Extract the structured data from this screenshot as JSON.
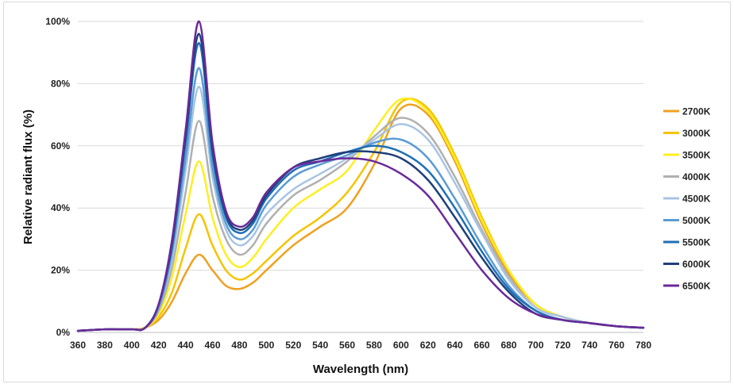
{
  "chart_data": {
    "type": "line",
    "title": "",
    "xlabel": "Wavelength (nm)",
    "ylabel": "Relative radiant flux (%)",
    "xlim": [
      360,
      780
    ],
    "ylim": [
      0,
      100
    ],
    "x_ticks": [
      360,
      380,
      400,
      420,
      440,
      460,
      480,
      500,
      520,
      540,
      560,
      580,
      600,
      620,
      640,
      660,
      680,
      700,
      720,
      740,
      760,
      780
    ],
    "y_ticks": [
      0,
      20,
      40,
      60,
      80,
      100
    ],
    "y_tick_labels": [
      "0%",
      "20%",
      "40%",
      "60%",
      "80%",
      "100%"
    ],
    "grid": "horizontal",
    "legend_position": "right",
    "x": [
      360,
      380,
      400,
      410,
      420,
      430,
      440,
      450,
      460,
      470,
      480,
      490,
      500,
      520,
      540,
      560,
      580,
      600,
      620,
      640,
      660,
      680,
      700,
      720,
      740,
      760,
      780
    ],
    "series": [
      {
        "name": "2700K",
        "color": "#f0a020",
        "values": [
          0.5,
          1,
          1,
          1.5,
          4,
          10,
          19,
          25,
          20,
          15,
          14,
          16,
          20,
          28,
          34,
          40,
          54,
          72,
          70,
          55,
          35,
          19,
          9,
          5,
          3,
          2,
          1.5
        ]
      },
      {
        "name": "3000K",
        "color": "#f5c400",
        "values": [
          0.5,
          1,
          1,
          1.5,
          5,
          13,
          27,
          38,
          28,
          20,
          17,
          19,
          23,
          31,
          37,
          45,
          58,
          74,
          72,
          57,
          37,
          20,
          9,
          5,
          3,
          2,
          1.5
        ]
      },
      {
        "name": "3500K",
        "color": "#ffee20",
        "values": [
          0.5,
          1,
          1,
          1.5,
          6,
          18,
          38,
          55,
          37,
          25,
          21,
          24,
          30,
          40,
          46,
          52,
          65,
          75,
          71,
          56,
          36,
          20,
          9,
          5,
          3,
          2,
          1.5
        ]
      },
      {
        "name": "4000K",
        "color": "#b0b0b0",
        "values": [
          0.5,
          1,
          1,
          1.5,
          7,
          21,
          45,
          68,
          44,
          30,
          25,
          28,
          35,
          44,
          49,
          55,
          63,
          69,
          64,
          50,
          33,
          18,
          8,
          5,
          3,
          2,
          1.5
        ]
      },
      {
        "name": "4500K",
        "color": "#a8c4e4",
        "values": [
          0.5,
          1,
          1,
          1.5,
          8,
          24,
          52,
          79,
          50,
          33,
          28,
          31,
          38,
          46,
          51,
          56,
          62,
          67,
          62,
          48,
          32,
          17,
          8,
          5,
          3,
          2,
          1.5
        ]
      },
      {
        "name": "5000K",
        "color": "#5b9bd5",
        "values": [
          0.5,
          1,
          1,
          1.5,
          8,
          26,
          56,
          85,
          53,
          35,
          30,
          33,
          41,
          50,
          54,
          57,
          61,
          62,
          56,
          43,
          28,
          15,
          7,
          4,
          3,
          2,
          1.5
        ]
      },
      {
        "name": "5500K",
        "color": "#1f6fb5",
        "values": [
          0.5,
          1,
          1,
          1.5,
          9,
          28,
          61,
          93,
          57,
          37,
          32,
          35,
          43,
          52,
          55,
          58,
          60,
          58,
          52,
          40,
          26,
          14,
          7,
          4,
          3,
          2,
          1.5
        ]
      },
      {
        "name": "6000K",
        "color": "#1f3f7a",
        "values": [
          0.5,
          1,
          1,
          1.5,
          9,
          29,
          63,
          96,
          59,
          38,
          33,
          36,
          44,
          53,
          56,
          58,
          58,
          56,
          49,
          37,
          24,
          13,
          6,
          4,
          3,
          2,
          1.5
        ]
      },
      {
        "name": "6500K",
        "color": "#6a2a9a",
        "values": [
          0.5,
          1,
          1,
          1.5,
          9,
          30,
          65,
          100,
          61,
          39,
          34,
          37,
          45,
          53,
          55,
          56,
          55,
          51,
          44,
          32,
          20,
          11,
          6,
          4,
          3,
          2,
          1.5
        ]
      }
    ]
  }
}
